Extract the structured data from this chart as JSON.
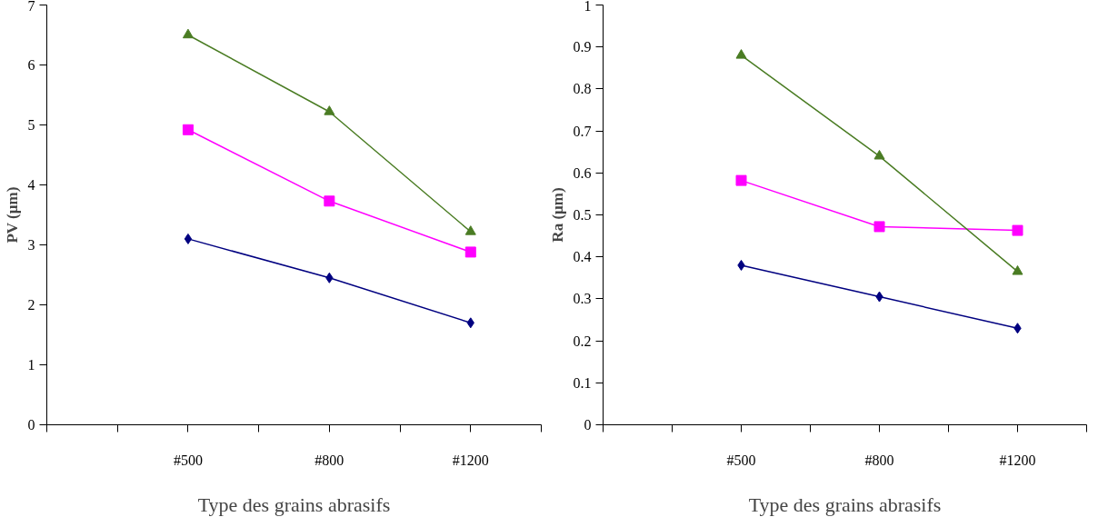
{
  "chart_data": [
    {
      "type": "line",
      "categories": [
        null,
        null,
        "#500",
        null,
        "#800",
        null,
        "#1200",
        null
      ],
      "xlabel": "Type des grains abrasifs",
      "ylabel": "PV (µm)",
      "ylim": [
        0,
        7
      ],
      "yticks": [
        0,
        1,
        2,
        3,
        4,
        5,
        6,
        7
      ],
      "grid": false,
      "series": [
        {
          "color": "#000080",
          "marker": "diamond",
          "values": [
            null,
            null,
            3.1,
            null,
            2.45,
            null,
            1.7,
            null
          ]
        },
        {
          "color": "#ff00ff",
          "marker": "square",
          "values": [
            null,
            null,
            4.92,
            null,
            3.73,
            null,
            2.88,
            null
          ]
        },
        {
          "color": "#4a7c23",
          "marker": "triangle",
          "values": [
            null,
            null,
            6.5,
            null,
            5.22,
            null,
            3.22,
            null
          ]
        }
      ]
    },
    {
      "type": "line",
      "categories": [
        null,
        null,
        "#500",
        null,
        "#800",
        null,
        "#1200",
        null
      ],
      "xlabel": "Type des grains abrasifs",
      "ylabel": "Ra (µm)",
      "ylim": [
        0,
        1
      ],
      "yticks": [
        0,
        0.1,
        0.2,
        0.3,
        0.4,
        0.5,
        0.6,
        0.7,
        0.8,
        0.9,
        1
      ],
      "grid": false,
      "series": [
        {
          "color": "#000080",
          "marker": "diamond",
          "values": [
            null,
            null,
            0.38,
            null,
            0.305,
            null,
            0.23,
            null
          ]
        },
        {
          "color": "#ff00ff",
          "marker": "square",
          "values": [
            null,
            null,
            0.582,
            null,
            0.472,
            null,
            0.463,
            null
          ]
        },
        {
          "color": "#4a7c23",
          "marker": "triangle",
          "values": [
            null,
            null,
            0.88,
            null,
            0.64,
            null,
            0.365,
            null
          ]
        }
      ]
    }
  ]
}
